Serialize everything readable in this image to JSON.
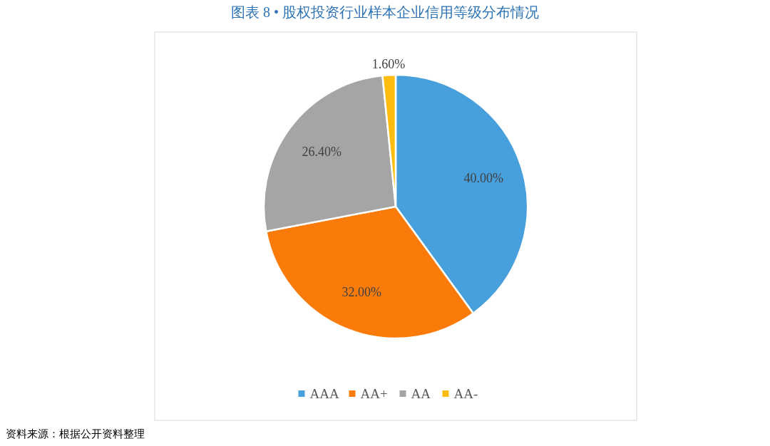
{
  "chart_data": {
    "type": "pie",
    "title": "图表 8 • 股权投资行业样本企业信用等级分布情况",
    "categories": [
      "AAA",
      "AA+",
      "AA",
      "AA-"
    ],
    "values": [
      40,
      32,
      26.4,
      1.6
    ],
    "value_labels": [
      "40.00%",
      "32.00%",
      "26.40%",
      "1.60%"
    ],
    "colors": [
      "#479fdc",
      "#fb7b0a",
      "#a5a5a5",
      "#fdbd10"
    ],
    "legend": "bottom",
    "annotations": [
      "资料来源：根据公开资料整理"
    ]
  }
}
